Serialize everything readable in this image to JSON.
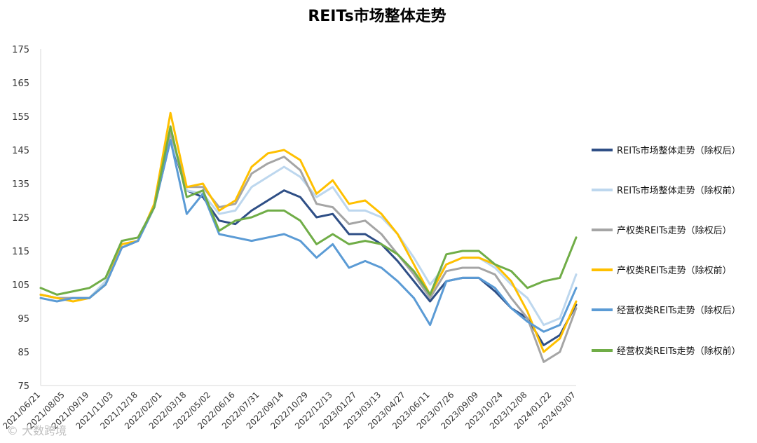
{
  "chart_data": {
    "type": "line",
    "title": "REITs市场整体走势",
    "xlabel": "",
    "ylabel": "",
    "ylim": [
      75,
      175
    ],
    "yticks": [
      75,
      85,
      95,
      105,
      115,
      125,
      135,
      145,
      155,
      165,
      175
    ],
    "x_ticks": [
      "2021/06/21",
      "2021/08/05",
      "2021/09/19",
      "2021/11/03",
      "2021/12/18",
      "2022/02/01",
      "2022/03/18",
      "2022/05/02",
      "2022/06/16",
      "2022/07/31",
      "2022/09/14",
      "2022/10/29",
      "2022/12/13",
      "2023/01/27",
      "2023/03/13",
      "2023/04/27",
      "2023/06/11",
      "2023/07/26",
      "2023/09/09",
      "2023/10/24",
      "2023/12/08",
      "2024/01/22",
      "2024/03/07"
    ],
    "legend_position": "right",
    "grid": false,
    "series": [
      {
        "name": "REITs市场整体走势（除权后）",
        "color": "#2f4f86",
        "values": [
          102,
          101,
          101,
          101,
          105,
          116,
          118,
          128,
          148,
          133,
          131,
          124,
          123,
          127,
          130,
          133,
          131,
          125,
          126,
          120,
          120,
          117,
          112,
          106,
          100,
          106,
          107,
          107,
          103,
          98,
          95,
          87,
          90,
          99
        ]
      },
      {
        "name": "REITs市场整体走势（除权前）",
        "color": "#bdd7ee",
        "values": [
          102,
          101,
          101,
          101,
          106,
          117,
          118,
          128,
          149,
          133,
          132,
          126,
          127,
          134,
          137,
          140,
          137,
          131,
          134,
          127,
          127,
          125,
          120,
          113,
          105,
          111,
          113,
          113,
          110,
          105,
          101,
          93,
          95,
          108
        ]
      },
      {
        "name": "产权类REITs走势（除权后）",
        "color": "#a5a5a5",
        "values": [
          102,
          101,
          101,
          101,
          105,
          116,
          118,
          128,
          150,
          134,
          134,
          128,
          129,
          138,
          141,
          143,
          139,
          129,
          128,
          123,
          124,
          120,
          114,
          108,
          101,
          109,
          110,
          110,
          108,
          101,
          95,
          82,
          85,
          98
        ]
      },
      {
        "name": "产权类REITs走势（除权前）",
        "color": "#ffc000",
        "values": [
          102,
          101,
          100,
          101,
          105,
          117,
          118,
          129,
          156,
          134,
          135,
          127,
          130,
          140,
          144,
          145,
          142,
          132,
          136,
          129,
          130,
          126,
          120,
          111,
          102,
          111,
          113,
          113,
          111,
          106,
          97,
          85,
          89,
          100
        ]
      },
      {
        "name": "经营权类REITs走势（除权后）",
        "color": "#5b9bd5",
        "values": [
          101,
          100,
          101,
          101,
          105,
          116,
          118,
          128,
          148,
          126,
          132,
          120,
          119,
          118,
          119,
          120,
          118,
          113,
          117,
          110,
          112,
          110,
          106,
          101,
          93,
          106,
          107,
          107,
          104,
          98,
          94,
          91,
          93,
          104
        ]
      },
      {
        "name": "经营权类REITs走势（除权前）",
        "color": "#70ad47",
        "values": [
          104,
          102,
          103,
          104,
          107,
          118,
          119,
          128,
          152,
          131,
          133,
          121,
          124,
          125,
          127,
          127,
          124,
          117,
          120,
          117,
          118,
          117,
          114,
          109,
          102,
          114,
          115,
          115,
          111,
          109,
          104,
          106,
          107,
          119
        ]
      }
    ]
  },
  "watermark": "© 大数跨境"
}
